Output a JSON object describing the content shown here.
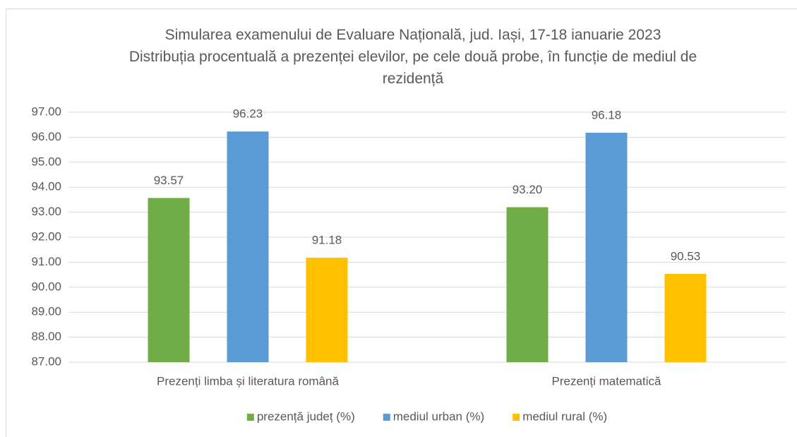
{
  "chart_data": {
    "type": "bar",
    "title": "Simularea examenului de Evaluare Națională, jud. Iași, 17-18 ianuarie 2023",
    "subtitle": "Distribuția procentuală a prezenței elevilor, pe cele două probe, în funcție de mediul de rezidență",
    "categories": [
      "Prezenți limba și literatura română",
      "Prezenți matematică"
    ],
    "series": [
      {
        "name": "prezență județ (%)",
        "color": "#70ad47",
        "values": [
          93.57,
          93.2
        ],
        "value_labels": [
          "93.57",
          "93.20"
        ]
      },
      {
        "name": "mediul urban (%)",
        "color": "#5b9bd5",
        "values": [
          96.23,
          96.18
        ],
        "value_labels": [
          "96.23",
          "96.18"
        ]
      },
      {
        "name": "mediul rural (%)",
        "color": "#ffc000",
        "values": [
          91.18,
          90.53
        ],
        "value_labels": [
          "91.18",
          "90.53"
        ]
      }
    ],
    "ylim": [
      87,
      97
    ],
    "yticks": [
      {
        "value": 87,
        "label": "87.00"
      },
      {
        "value": 88,
        "label": "88.00"
      },
      {
        "value": 89,
        "label": "89.00"
      },
      {
        "value": 90,
        "label": "90.00"
      },
      {
        "value": 91,
        "label": "91.00"
      },
      {
        "value": 92,
        "label": "92.00"
      },
      {
        "value": 93,
        "label": "93.00"
      },
      {
        "value": 94,
        "label": "94.00"
      },
      {
        "value": 95,
        "label": "95.00"
      },
      {
        "value": 96,
        "label": "96.00"
      },
      {
        "value": 97,
        "label": "97.00"
      }
    ],
    "grid": true,
    "legend": "bottom"
  }
}
